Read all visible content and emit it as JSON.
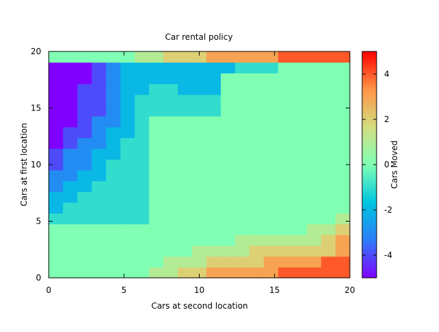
{
  "chart_data": {
    "type": "heatmap",
    "title": "Car rental policy",
    "xlabel": "Cars at second location",
    "ylabel": "Cars at first location",
    "colorbar_label": "Cars Moved",
    "xlim": [
      0,
      20
    ],
    "ylim": [
      0,
      20
    ],
    "xticks": [
      0,
      5,
      10,
      15,
      20
    ],
    "yticks": [
      0,
      5,
      10,
      15,
      20
    ],
    "clim": [
      -5,
      5
    ],
    "colorbar_ticks": [
      -4,
      -2,
      0,
      2,
      4
    ],
    "colormap": [
      "#8000ff",
      "#2c7ef7",
      "#00c6e0",
      "#7fffb3",
      "#d4dd80",
      "#ff9546",
      "#ff0000"
    ],
    "row_segments_from_y0": [
      [
        [
          7,
          0
        ],
        [
          9,
          1
        ],
        [
          11,
          2
        ],
        [
          16,
          3
        ],
        [
          21,
          4
        ]
      ],
      [
        [
          8,
          0
        ],
        [
          11,
          1
        ],
        [
          15,
          2
        ],
        [
          19,
          3
        ],
        [
          21,
          4
        ]
      ],
      [
        [
          10,
          0
        ],
        [
          14,
          1
        ],
        [
          20,
          2
        ],
        [
          21,
          3
        ]
      ],
      [
        [
          13,
          0
        ],
        [
          19,
          1
        ],
        [
          20,
          2
        ],
        [
          21,
          3
        ]
      ],
      [
        [
          18,
          0
        ],
        [
          20,
          1
        ],
        [
          21,
          2
        ]
      ],
      [
        [
          20,
          0
        ],
        [
          21,
          1
        ]
      ],
      [
        [
          21,
          0
        ]
      ],
      [
        [
          21,
          0
        ]
      ],
      [
        [
          21,
          0
        ]
      ],
      [
        [
          21,
          0
        ]
      ],
      [
        [
          21,
          0
        ]
      ],
      [
        [
          21,
          0
        ]
      ],
      [
        [
          21,
          0
        ]
      ],
      [
        [
          21,
          0
        ]
      ],
      [
        [
          21,
          0
        ]
      ],
      [
        [
          21,
          0
        ]
      ],
      [
        [
          21,
          0
        ]
      ],
      [
        [
          21,
          0
        ]
      ],
      [
        [
          21,
          0
        ]
      ],
      [
        [
          21,
          0
        ]
      ],
      [
        [
          6,
          0
        ],
        [
          8,
          1
        ],
        [
          11,
          2
        ],
        [
          16,
          3
        ],
        [
          21,
          4
        ]
      ]
    ],
    "upper_left_rows_from_y5": [
      [
        -1,
        -1,
        -1,
        -1,
        -1,
        -1,
        -1
      ],
      [
        -2,
        -1,
        -1,
        -1,
        -1,
        -1,
        -1
      ],
      [
        -2,
        -2,
        -1,
        -1,
        -1,
        -1,
        -1
      ],
      [
        -3,
        -2,
        -2,
        -1,
        -1,
        -1,
        -1
      ],
      [
        -3,
        -3,
        -2,
        -2,
        -1,
        -1,
        -1
      ],
      [
        -4,
        -3,
        -3,
        -2,
        -1,
        -1,
        -1
      ],
      [
        -4,
        -3,
        -3,
        -2,
        -2,
        -1,
        -1
      ],
      [
        -5,
        -4,
        -3,
        -3,
        -2,
        -1,
        -1
      ],
      [
        -5,
        -4,
        -4,
        -3,
        -2,
        -2,
        -1
      ],
      [
        -5,
        -5,
        -4,
        -3,
        -3,
        -2,
        -1
      ],
      [
        -5,
        -5,
        -4,
        -4,
        -3,
        -2,
        -1
      ],
      [
        -5,
        -5,
        -4,
        -4,
        -3,
        -2,
        -1
      ],
      [
        -5,
        -5,
        -4,
        -4,
        -3,
        -2,
        -2
      ],
      [
        -5,
        -5,
        -5,
        -4,
        -3,
        -2,
        -2
      ],
      [
        -5,
        -5,
        -5,
        -4,
        -3,
        -2,
        -2
      ]
    ],
    "top_right_row_from_y15": [
      [
        -1,
        -1,
        -1,
        -1,
        -1
      ],
      [
        -1,
        -1,
        -1,
        -1,
        -1
      ],
      [
        -1,
        -1,
        -2,
        -2,
        -2
      ],
      [
        -2,
        -2,
        -2,
        -2,
        -2
      ],
      [
        -2,
        -2,
        -2,
        -2,
        -2
      ]
    ],
    "top_right_extra_y19": [
      [
        7,
        12,
        -2
      ],
      [
        13,
        15,
        -1
      ]
    ]
  }
}
